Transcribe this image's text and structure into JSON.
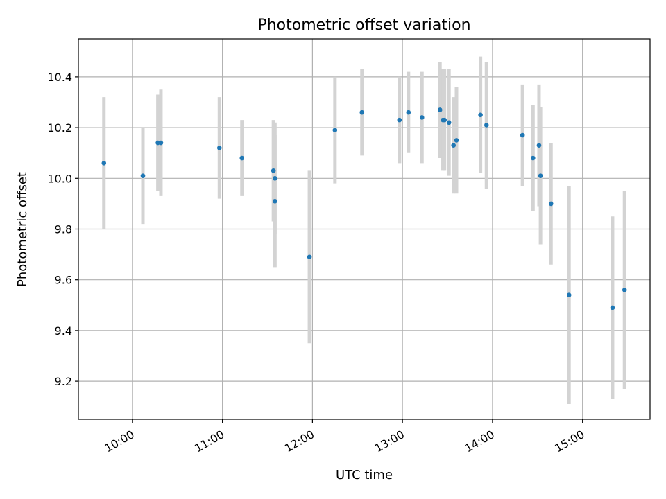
{
  "chart_data": {
    "type": "scatter",
    "title": "Photometric offset variation",
    "xlabel": "UTC time",
    "ylabel": "Photometric offset",
    "x_unit": "time of day (HH:MM)",
    "xlim": [
      "09:24",
      "15:45"
    ],
    "ylim": [
      9.05,
      10.55
    ],
    "x_ticks": [
      "10:00",
      "11:00",
      "12:00",
      "13:00",
      "14:00",
      "15:00"
    ],
    "y_ticks": [
      9.2,
      9.4,
      9.6,
      9.8,
      10.0,
      10.2,
      10.4
    ],
    "y_tick_labels": [
      "9.2",
      "9.4",
      "9.6",
      "9.8",
      "10.0",
      "10.2",
      "10.4"
    ],
    "grid": true,
    "marker_color": "#1f77b4",
    "errorbar_color": "#d3d3d3",
    "points": [
      {
        "x": "09:41",
        "y": 10.06,
        "err": 0.26
      },
      {
        "x": "10:07",
        "y": 10.01,
        "err": 0.19
      },
      {
        "x": "10:17",
        "y": 10.14,
        "err": 0.19
      },
      {
        "x": "10:19",
        "y": 10.14,
        "err": 0.21
      },
      {
        "x": "10:58",
        "y": 10.12,
        "err": 0.2
      },
      {
        "x": "11:13",
        "y": 10.08,
        "err": 0.15
      },
      {
        "x": "11:34",
        "y": 10.03,
        "err": 0.2
      },
      {
        "x": "11:35",
        "y": 10.0,
        "err": 0.22
      },
      {
        "x": "11:35",
        "y": 9.91,
        "err": 0.26
      },
      {
        "x": "11:58",
        "y": 9.69,
        "err": 0.34
      },
      {
        "x": "12:15",
        "y": 10.19,
        "err": 0.21
      },
      {
        "x": "12:33",
        "y": 10.26,
        "err": 0.17
      },
      {
        "x": "12:58",
        "y": 10.23,
        "err": 0.17
      },
      {
        "x": "13:04",
        "y": 10.26,
        "err": 0.16
      },
      {
        "x": "13:13",
        "y": 10.24,
        "err": 0.18
      },
      {
        "x": "13:25",
        "y": 10.27,
        "err": 0.19
      },
      {
        "x": "13:27",
        "y": 10.23,
        "err": 0.2
      },
      {
        "x": "13:28",
        "y": 10.23,
        "err": 0.2
      },
      {
        "x": "13:31",
        "y": 10.22,
        "err": 0.21
      },
      {
        "x": "13:34",
        "y": 10.13,
        "err": 0.19
      },
      {
        "x": "13:36",
        "y": 10.15,
        "err": 0.21
      },
      {
        "x": "13:52",
        "y": 10.25,
        "err": 0.23
      },
      {
        "x": "13:56",
        "y": 10.21,
        "err": 0.25
      },
      {
        "x": "14:20",
        "y": 10.17,
        "err": 0.2
      },
      {
        "x": "14:27",
        "y": 10.08,
        "err": 0.21
      },
      {
        "x": "14:31",
        "y": 10.13,
        "err": 0.24
      },
      {
        "x": "14:32",
        "y": 10.01,
        "err": 0.27
      },
      {
        "x": "14:39",
        "y": 9.9,
        "err": 0.24
      },
      {
        "x": "14:51",
        "y": 9.54,
        "err": 0.43
      },
      {
        "x": "15:20",
        "y": 9.49,
        "err": 0.36
      },
      {
        "x": "15:28",
        "y": 9.56,
        "err": 0.39
      }
    ]
  }
}
